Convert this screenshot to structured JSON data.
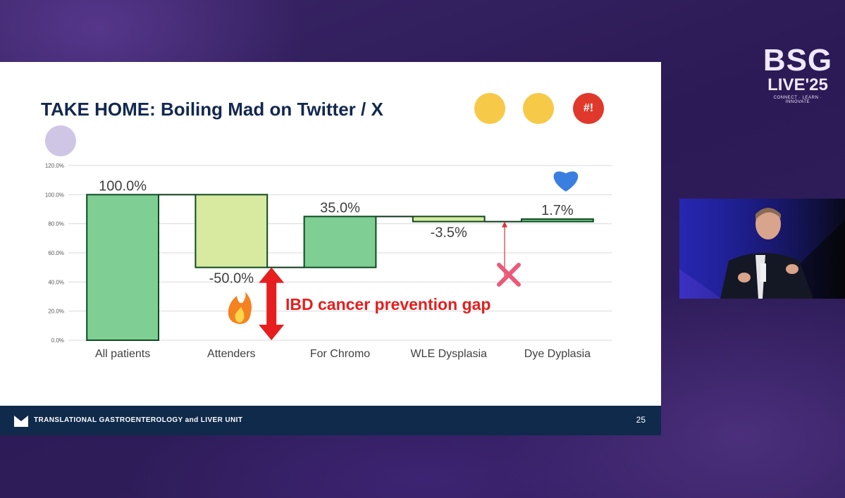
{
  "slide": {
    "title": "TAKE HOME: Boiling Mad on Twitter / X",
    "emojis": [
      {
        "name": "exploding-head-emoji-icon",
        "color": "#f7c948"
      },
      {
        "name": "screaming-face-emoji-icon",
        "color": "#f7c948"
      },
      {
        "name": "cursing-face-emoji-icon",
        "color": "#e0392b",
        "text": "#!"
      },
      {
        "name": "skull-crossbones-emoji-icon",
        "color": "#cfc6e6"
      }
    ],
    "page_number": "25",
    "footer_text": "TRANSLATIONAL GASTROENTEROLOGY and LIVER UNIT"
  },
  "event": {
    "line1": "BSG",
    "line2": "LIVE'25",
    "tagline": "CONNECT · LEARN · INNOVATE"
  },
  "chart_data": {
    "type": "bar",
    "subtype": "waterfall",
    "categories": [
      "All patients",
      "Attenders",
      "For Chromo",
      "WLE Dysplasia",
      "Dye Dyplasia"
    ],
    "ranges": [
      [
        0,
        100
      ],
      [
        50,
        100
      ],
      [
        50,
        85
      ],
      [
        81.5,
        85
      ],
      [
        81.5,
        83.2
      ]
    ],
    "data_labels": [
      "100.0%",
      "-50.0%",
      "35.0%",
      "-3.5%",
      "1.7%"
    ],
    "bar_colors": [
      "#7fcf95",
      "#d8eaa0",
      "#7fcf95",
      "#d8eaa0",
      "#7fcf95"
    ],
    "bar_edge_color": "#0d4a1f",
    "ylim": [
      0,
      120
    ],
    "yticks": [
      "0.0%",
      "20.0%",
      "40.0%",
      "60.0%",
      "80.0%",
      "100.0%",
      "120.0%"
    ],
    "grid": true,
    "annotation": {
      "text": "IBD cancer prevention gap",
      "color": "#e61e1e",
      "gap_range": [
        0,
        50
      ],
      "icons": [
        "fire-icon",
        "heart-icon",
        "cross-mark-icon"
      ]
    }
  }
}
